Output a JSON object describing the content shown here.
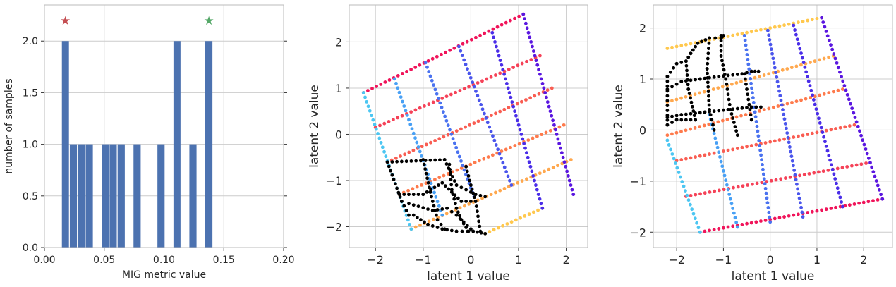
{
  "chart_data": [
    {
      "type": "bar",
      "xlabel": "MIG metric value",
      "ylabel": "number of samples",
      "xlim": [
        0.0,
        0.2
      ],
      "ylim": [
        0.0,
        2.35
      ],
      "xticks": [
        "0.00",
        "0.05",
        "0.10",
        "0.15",
        "0.20"
      ],
      "yticks": [
        "0.0",
        "0.5",
        "1.0",
        "1.5",
        "2.0"
      ],
      "grid": true,
      "bar_color": "#4c72b0",
      "bins": [
        {
          "start": 0.0143,
          "end": 0.0209,
          "count": 2
        },
        {
          "start": 0.0209,
          "end": 0.0276,
          "count": 1
        },
        {
          "start": 0.0276,
          "end": 0.0342,
          "count": 1
        },
        {
          "start": 0.0342,
          "end": 0.0409,
          "count": 1
        },
        {
          "start": 0.0476,
          "end": 0.0542,
          "count": 1
        },
        {
          "start": 0.0542,
          "end": 0.0609,
          "count": 1
        },
        {
          "start": 0.0609,
          "end": 0.0676,
          "count": 1
        },
        {
          "start": 0.0742,
          "end": 0.0809,
          "count": 1
        },
        {
          "start": 0.0942,
          "end": 0.1009,
          "count": 1
        },
        {
          "start": 0.1076,
          "end": 0.1142,
          "count": 2
        },
        {
          "start": 0.1209,
          "end": 0.1276,
          "count": 1
        },
        {
          "start": 0.1342,
          "end": 0.1409,
          "count": 2
        }
      ],
      "markers": [
        {
          "x": 0.0175,
          "y": 2.2,
          "symbol": "★",
          "color": "#c44e52"
        },
        {
          "x": 0.1375,
          "y": 2.2,
          "symbol": "★",
          "color": "#55a868"
        }
      ]
    },
    {
      "type": "scatter",
      "xlabel": "latent 1 value",
      "ylabel": "latent 2 value",
      "xlim": [
        -2.55,
        2.45
      ],
      "ylim": [
        -2.45,
        2.8
      ],
      "xticks": [
        -2,
        -1,
        0,
        1,
        2
      ],
      "yticks": [
        -2,
        -1,
        0,
        1,
        2
      ],
      "grid": true,
      "grid_rows": [
        {
          "start": [
            -2.25,
            0.9
          ],
          "end": [
            1.1,
            2.6
          ],
          "color": "#f0145a"
        },
        {
          "start": [
            -2.0,
            0.15
          ],
          "end": [
            1.45,
            1.7
          ],
          "color": "#f54258"
        },
        {
          "start": [
            -1.75,
            -0.6
          ],
          "end": [
            1.7,
            1.0
          ],
          "color": "#f95d52"
        },
        {
          "start": [
            -1.5,
            -1.3
          ],
          "end": [
            1.95,
            0.2
          ],
          "color": "#fe7a4c"
        },
        {
          "start": [
            -1.25,
            -2.05
          ],
          "end": [
            2.1,
            -0.55
          ],
          "color": "#ffa84e"
        },
        {
          "start": [
            0.3,
            -2.15
          ],
          "end": [
            1.5,
            -1.6
          ],
          "color": "#ffc84e"
        }
      ],
      "grid_columns": [
        {
          "start": [
            -2.25,
            0.9
          ],
          "end": [
            -1.25,
            -2.05
          ],
          "color": "#4cc6f2"
        },
        {
          "start": [
            -1.6,
            1.2
          ],
          "end": [
            -0.6,
            -1.75
          ],
          "color": "#48a0f5"
        },
        {
          "start": [
            -0.95,
            1.55
          ],
          "end": [
            0.1,
            -1.45
          ],
          "color": "#4a72f0"
        },
        {
          "start": [
            -0.25,
            1.9
          ],
          "end": [
            0.85,
            -1.1
          ],
          "color": "#4a55ec"
        },
        {
          "start": [
            0.45,
            2.2
          ],
          "end": [
            1.5,
            -1.6
          ],
          "color": "#4a2de8"
        },
        {
          "start": [
            1.1,
            2.6
          ],
          "end": [
            2.15,
            -1.3
          ],
          "color": "#5a16e0"
        }
      ],
      "black_region": {
        "rows": [
          [
            [
              -1.75,
              -0.6
            ],
            [
              -0.55,
              -0.55
            ],
            [
              -0.3,
              -1.1
            ],
            [
              0.1,
              -1.3
            ],
            [
              0.3,
              -1.35
            ]
          ],
          [
            [
              -1.5,
              -1.3
            ],
            [
              -1.0,
              -1.3
            ],
            [
              -0.6,
              -1.05
            ],
            [
              -0.2,
              -1.45
            ],
            [
              0.1,
              -1.45
            ]
          ],
          [
            [
              -1.3,
              -1.5
            ],
            [
              -0.8,
              -1.65
            ],
            [
              -0.5,
              -1.6
            ],
            [
              -0.3,
              -1.75
            ],
            [
              0.0,
              -2.05
            ]
          ],
          [
            [
              -1.2,
              -1.75
            ],
            [
              -0.9,
              -1.95
            ],
            [
              -0.6,
              -2.05
            ],
            [
              -0.3,
              -2.1
            ],
            [
              0.05,
              -2.1
            ],
            [
              0.3,
              -2.15
            ]
          ]
        ],
        "cols": [
          [
            [
              -1.75,
              -0.6
            ],
            [
              -1.45,
              -1.45
            ],
            [
              -1.3,
              -1.75
            ]
          ],
          [
            [
              -1.0,
              -0.55
            ],
            [
              -0.85,
              -1.25
            ],
            [
              -0.7,
              -1.85
            ],
            [
              -0.55,
              -2.05
            ]
          ],
          [
            [
              -0.45,
              -0.65
            ],
            [
              -0.4,
              -1.2
            ],
            [
              -0.3,
              -1.6
            ],
            [
              -0.2,
              -1.85
            ],
            [
              -0.05,
              -2.1
            ]
          ],
          [
            [
              -0.1,
              -0.7
            ],
            [
              0.0,
              -1.1
            ],
            [
              0.1,
              -1.45
            ],
            [
              0.2,
              -2.1
            ]
          ]
        ],
        "color": "#000000"
      }
    },
    {
      "type": "scatter",
      "xlabel": "latent 1 value",
      "ylabel": "latent 2 value",
      "xlim": [
        -2.5,
        2.6
      ],
      "ylim": [
        -2.3,
        2.45
      ],
      "xticks": [
        -2,
        -1,
        0,
        1,
        2
      ],
      "yticks": [
        -2,
        -1,
        0,
        1,
        2
      ],
      "grid": true,
      "grid_rows": [
        {
          "start": [
            -2.2,
            1.6
          ],
          "end": [
            1.1,
            2.2
          ],
          "color": "#ffc84e"
        },
        {
          "start": [
            -2.2,
            0.55
          ],
          "end": [
            1.35,
            1.45
          ],
          "color": "#ffa84e"
        },
        {
          "start": [
            -2.2,
            -0.1
          ],
          "end": [
            1.55,
            0.8
          ],
          "color": "#fe7a4c"
        },
        {
          "start": [
            -2.0,
            -0.6
          ],
          "end": [
            1.8,
            0.1
          ],
          "color": "#f95d52"
        },
        {
          "start": [
            -1.8,
            -1.3
          ],
          "end": [
            2.05,
            -0.65
          ],
          "color": "#f54258"
        },
        {
          "start": [
            -1.5,
            -2.0
          ],
          "end": [
            2.4,
            -1.35
          ],
          "color": "#f0145a"
        }
      ],
      "grid_columns": [
        {
          "start": [
            -2.2,
            -0.2
          ],
          "end": [
            -1.5,
            -2.0
          ],
          "color": "#4cc6f2"
        },
        {
          "start": [
            -1.3,
            0.3
          ],
          "end": [
            -0.7,
            -1.9
          ],
          "color": "#48a0f5"
        },
        {
          "start": [
            -0.55,
            1.85
          ],
          "end": [
            0.0,
            -1.8
          ],
          "color": "#4a72f0"
        },
        {
          "start": [
            -0.05,
            1.95
          ],
          "end": [
            0.7,
            -1.7
          ],
          "color": "#4a55ec"
        },
        {
          "start": [
            0.5,
            2.05
          ],
          "end": [
            1.55,
            -1.5
          ],
          "color": "#4a2de8"
        },
        {
          "start": [
            1.1,
            2.2
          ],
          "end": [
            2.4,
            -1.35
          ],
          "color": "#5a16e0"
        }
      ],
      "black_region": {
        "rows": [
          [
            [
              -2.2,
              1.05
            ],
            [
              -2.0,
              1.3
            ],
            [
              -1.8,
              1.35
            ],
            [
              -1.7,
              1.5
            ],
            [
              -1.55,
              1.7
            ],
            [
              -1.3,
              1.8
            ],
            [
              -1.05,
              1.8
            ],
            [
              -1.0,
              1.85
            ]
          ],
          [
            [
              -2.2,
              0.8
            ],
            [
              -1.9,
              0.95
            ],
            [
              -1.5,
              1.0
            ],
            [
              -1.1,
              1.05
            ],
            [
              -0.6,
              1.1
            ],
            [
              -0.4,
              1.15
            ],
            [
              -0.25,
              1.15
            ]
          ],
          [
            [
              -2.2,
              0.25
            ],
            [
              -1.9,
              0.3
            ],
            [
              -1.4,
              0.35
            ],
            [
              -0.9,
              0.4
            ],
            [
              -0.4,
              0.45
            ],
            [
              -0.2,
              0.45
            ]
          ],
          [
            [
              -2.2,
              0.1
            ],
            [
              -2.0,
              0.2
            ],
            [
              -1.6,
              0.2
            ]
          ]
        ],
        "cols": [
          [
            [
              -2.2,
              1.05
            ],
            [
              -2.2,
              0.1
            ]
          ],
          [
            [
              -1.8,
              1.35
            ],
            [
              -1.75,
              0.8
            ],
            [
              -1.6,
              0.2
            ]
          ],
          [
            [
              -1.3,
              1.8
            ],
            [
              -1.35,
              1.2
            ],
            [
              -1.3,
              0.4
            ],
            [
              -1.2,
              0.0
            ]
          ],
          [
            [
              -1.05,
              1.85
            ],
            [
              -1.05,
              1.45
            ],
            [
              -0.95,
              1.0
            ],
            [
              -0.85,
              0.4
            ],
            [
              -0.7,
              -0.1
            ]
          ],
          [
            [
              -0.55,
              1.1
            ],
            [
              -0.45,
              0.5
            ],
            [
              -0.4,
              0.2
            ]
          ]
        ],
        "color": "#000000"
      }
    }
  ]
}
